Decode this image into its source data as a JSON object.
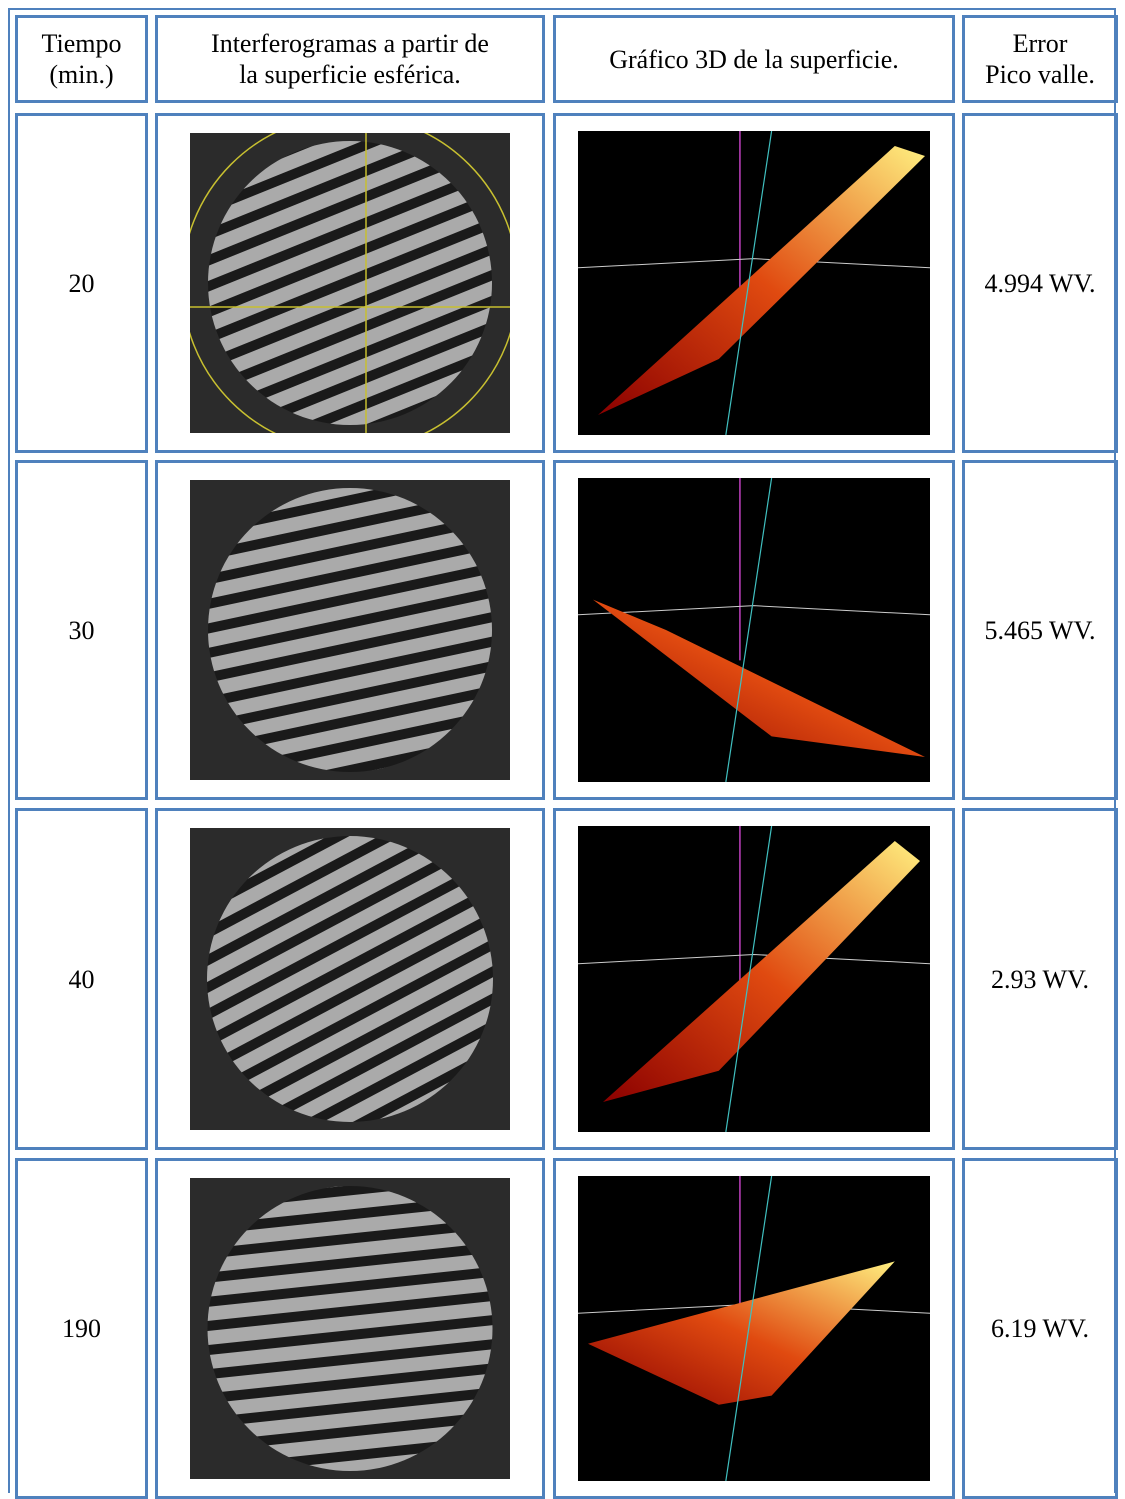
{
  "table": {
    "header": [
      [
        "Tiempo",
        "(min.)"
      ],
      [
        "Interferogramas a partir de",
        "la superficie esférica."
      ],
      [
        "Gráfico 3D de la superficie."
      ],
      [
        "Error",
        "Pico valle."
      ]
    ],
    "rows": [
      {
        "time": "20",
        "error": "4.994 WV."
      },
      {
        "time": "30",
        "error": "5.465 WV."
      },
      {
        "time": "40",
        "error": "2.93 WV."
      },
      {
        "time": "190",
        "error": "6.19 WV."
      }
    ]
  }
}
